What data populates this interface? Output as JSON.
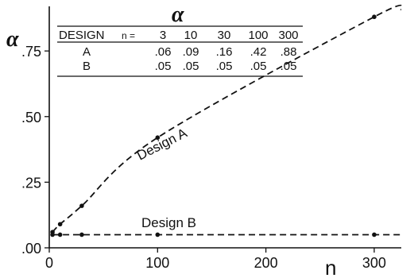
{
  "chart_data": {
    "type": "line",
    "ylabel": "α",
    "xlabel": "n",
    "xlim": [
      0,
      325
    ],
    "ylim": [
      0,
      0.92
    ],
    "y_ticks": [
      ".00",
      ".25",
      ".50",
      ".75"
    ],
    "y_tick_values": [
      0,
      0.25,
      0.5,
      0.75
    ],
    "x_ticks": [
      "0",
      "100",
      "200",
      "300"
    ],
    "x_tick_values": [
      0,
      100,
      200,
      300
    ],
    "series": [
      {
        "name": "Design A",
        "x": [
          3,
          10,
          30,
          100,
          300
        ],
        "y": [
          0.06,
          0.09,
          0.16,
          0.42,
          0.88
        ]
      },
      {
        "name": "Design B",
        "x": [
          3,
          10,
          30,
          100,
          300
        ],
        "y": [
          0.05,
          0.05,
          0.05,
          0.05,
          0.05
        ]
      }
    ],
    "table": {
      "title": "α",
      "header_label": "DESIGN",
      "n_label": "n =",
      "n_values": [
        "3",
        "10",
        "30",
        "100",
        "300"
      ],
      "rows": [
        {
          "design": "A",
          "values": [
            ".06",
            ".09",
            ".16",
            ".42",
            ".88"
          ]
        },
        {
          "design": "B",
          "values": [
            ".05",
            ".05",
            ".05",
            ".05",
            ".05"
          ]
        }
      ]
    }
  }
}
